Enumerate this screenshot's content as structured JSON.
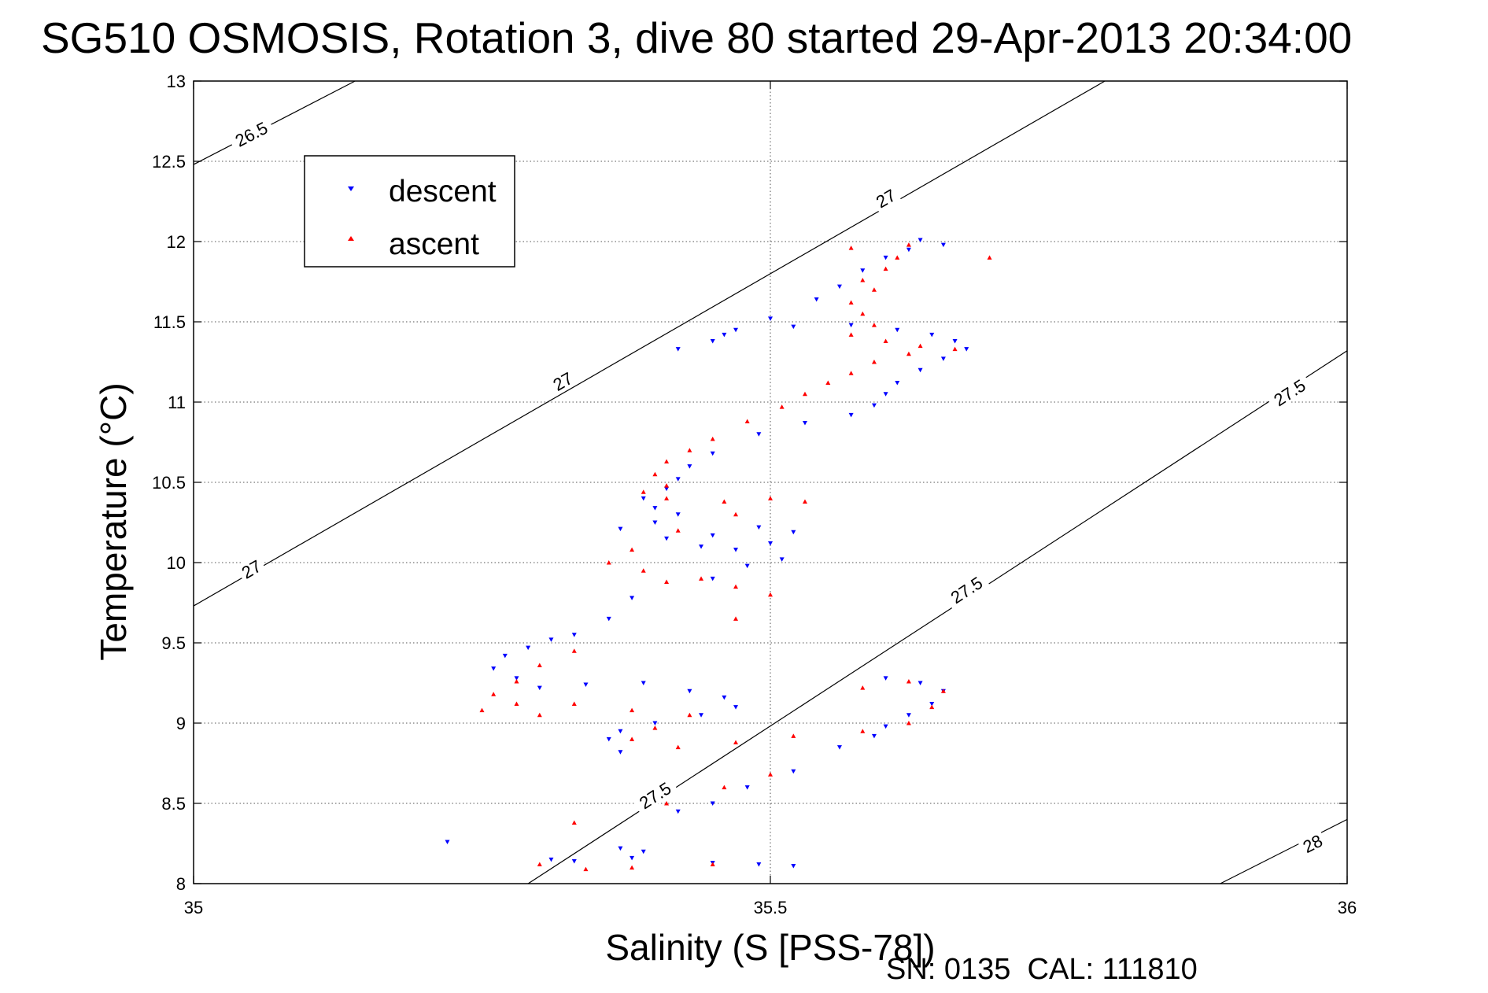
{
  "chart_data": {
    "type": "scatter",
    "title": "SG510 OSMOSIS, Rotation 3, dive 80 started 29-Apr-2013 20:34:00",
    "xlabel": "Salinity (S [PSS-78])",
    "ylabel": "Temperature (°C)",
    "xlim": [
      35,
      36
    ],
    "ylim": [
      8,
      13
    ],
    "xticks": [
      "35",
      "35.5",
      "36"
    ],
    "yticks": [
      "8",
      "8.5",
      "9",
      "9.5",
      "10",
      "10.5",
      "11",
      "11.5",
      "12",
      "12.5",
      "13"
    ],
    "grid": true,
    "legend_position": "top-left",
    "footer": "SN: 0135  CAL: 111810",
    "series": [
      {
        "name": "descent",
        "marker": "triangle-down",
        "color": "#0000ff",
        "points": [
          [
            35.63,
            12.01
          ],
          [
            35.65,
            11.98
          ],
          [
            35.62,
            11.95
          ],
          [
            35.6,
            11.9
          ],
          [
            35.58,
            11.82
          ],
          [
            35.56,
            11.72
          ],
          [
            35.54,
            11.64
          ],
          [
            35.5,
            11.52
          ],
          [
            35.47,
            11.45
          ],
          [
            35.45,
            11.38
          ],
          [
            35.42,
            11.33
          ],
          [
            35.46,
            11.42
          ],
          [
            35.52,
            11.47
          ],
          [
            35.57,
            11.48
          ],
          [
            35.61,
            11.45
          ],
          [
            35.64,
            11.42
          ],
          [
            35.66,
            11.38
          ],
          [
            35.67,
            11.33
          ],
          [
            35.65,
            11.27
          ],
          [
            35.63,
            11.2
          ],
          [
            35.61,
            11.12
          ],
          [
            35.6,
            11.05
          ],
          [
            35.59,
            10.98
          ],
          [
            35.57,
            10.92
          ],
          [
            35.53,
            10.87
          ],
          [
            35.49,
            10.8
          ],
          [
            35.45,
            10.68
          ],
          [
            35.43,
            10.6
          ],
          [
            35.42,
            10.52
          ],
          [
            35.41,
            10.46
          ],
          [
            35.39,
            10.4
          ],
          [
            35.4,
            10.34
          ],
          [
            35.42,
            10.3
          ],
          [
            35.4,
            10.25
          ],
          [
            35.37,
            10.21
          ],
          [
            35.41,
            10.15
          ],
          [
            35.45,
            10.17
          ],
          [
            35.49,
            10.22
          ],
          [
            35.52,
            10.19
          ],
          [
            35.5,
            10.12
          ],
          [
            35.47,
            10.08
          ],
          [
            35.44,
            10.1
          ],
          [
            35.51,
            10.02
          ],
          [
            35.48,
            9.98
          ],
          [
            35.45,
            9.9
          ],
          [
            35.38,
            9.78
          ],
          [
            35.36,
            9.65
          ],
          [
            35.33,
            9.55
          ],
          [
            35.31,
            9.52
          ],
          [
            35.29,
            9.47
          ],
          [
            35.27,
            9.42
          ],
          [
            35.26,
            9.34
          ],
          [
            35.28,
            9.28
          ],
          [
            35.3,
            9.22
          ],
          [
            35.34,
            9.24
          ],
          [
            35.39,
            9.25
          ],
          [
            35.43,
            9.2
          ],
          [
            35.46,
            9.16
          ],
          [
            35.47,
            9.1
          ],
          [
            35.44,
            9.05
          ],
          [
            35.4,
            9.0
          ],
          [
            35.37,
            8.95
          ],
          [
            35.36,
            8.9
          ],
          [
            35.37,
            8.82
          ],
          [
            35.6,
            9.28
          ],
          [
            35.63,
            9.25
          ],
          [
            35.65,
            9.2
          ],
          [
            35.64,
            9.12
          ],
          [
            35.62,
            9.05
          ],
          [
            35.6,
            8.98
          ],
          [
            35.59,
            8.92
          ],
          [
            35.56,
            8.85
          ],
          [
            35.52,
            8.7
          ],
          [
            35.48,
            8.6
          ],
          [
            35.45,
            8.5
          ],
          [
            35.42,
            8.45
          ],
          [
            35.37,
            8.22
          ],
          [
            35.31,
            8.15
          ],
          [
            35.33,
            8.14
          ],
          [
            35.38,
            8.16
          ],
          [
            35.45,
            8.13
          ],
          [
            35.49,
            8.12
          ],
          [
            35.52,
            8.11
          ],
          [
            35.39,
            8.2
          ],
          [
            35.22,
            8.26
          ]
        ]
      },
      {
        "name": "ascent",
        "marker": "triangle-up",
        "color": "#ff0000",
        "points": [
          [
            35.62,
            11.98
          ],
          [
            35.57,
            11.96
          ],
          [
            35.61,
            11.9
          ],
          [
            35.6,
            11.83
          ],
          [
            35.58,
            11.76
          ],
          [
            35.59,
            11.7
          ],
          [
            35.57,
            11.62
          ],
          [
            35.58,
            11.55
          ],
          [
            35.59,
            11.48
          ],
          [
            35.57,
            11.42
          ],
          [
            35.6,
            11.38
          ],
          [
            35.63,
            11.35
          ],
          [
            35.66,
            11.33
          ],
          [
            35.62,
            11.3
          ],
          [
            35.59,
            11.25
          ],
          [
            35.57,
            11.18
          ],
          [
            35.55,
            11.12
          ],
          [
            35.53,
            11.05
          ],
          [
            35.51,
            10.97
          ],
          [
            35.48,
            10.88
          ],
          [
            35.45,
            10.77
          ],
          [
            35.43,
            10.7
          ],
          [
            35.41,
            10.63
          ],
          [
            35.4,
            10.55
          ],
          [
            35.41,
            10.48
          ],
          [
            35.39,
            10.44
          ],
          [
            35.41,
            10.4
          ],
          [
            35.46,
            10.38
          ],
          [
            35.5,
            10.4
          ],
          [
            35.53,
            10.38
          ],
          [
            35.47,
            10.3
          ],
          [
            35.42,
            10.2
          ],
          [
            35.38,
            10.08
          ],
          [
            35.36,
            10.0
          ],
          [
            35.39,
            9.95
          ],
          [
            35.44,
            9.9
          ],
          [
            35.5,
            9.8
          ],
          [
            35.47,
            9.85
          ],
          [
            35.41,
            9.88
          ],
          [
            35.33,
            9.45
          ],
          [
            35.3,
            9.36
          ],
          [
            35.28,
            9.26
          ],
          [
            35.26,
            9.18
          ],
          [
            35.28,
            9.12
          ],
          [
            35.25,
            9.08
          ],
          [
            35.3,
            9.05
          ],
          [
            35.33,
            9.12
          ],
          [
            35.38,
            9.08
          ],
          [
            35.43,
            9.05
          ],
          [
            35.4,
            8.97
          ],
          [
            35.38,
            8.9
          ],
          [
            35.42,
            8.85
          ],
          [
            35.47,
            8.88
          ],
          [
            35.52,
            8.92
          ],
          [
            35.58,
            8.95
          ],
          [
            35.62,
            9.0
          ],
          [
            35.64,
            9.1
          ],
          [
            35.65,
            9.2
          ],
          [
            35.62,
            9.26
          ],
          [
            35.58,
            9.22
          ],
          [
            35.5,
            8.68
          ],
          [
            35.46,
            8.6
          ],
          [
            35.41,
            8.5
          ],
          [
            35.33,
            8.38
          ],
          [
            35.3,
            8.12
          ],
          [
            35.34,
            8.09
          ],
          [
            35.38,
            8.1
          ],
          [
            35.45,
            8.12
          ],
          [
            35.69,
            11.9
          ],
          [
            35.47,
            9.65
          ]
        ]
      }
    ],
    "density_contours": [
      {
        "label": "26.5",
        "from": [
          35.0,
          12.48
        ],
        "to": [
          35.14,
          13.0
        ],
        "label_at": [
          35.05,
          12.67
        ]
      },
      {
        "label": "27",
        "from": [
          35.0,
          9.73
        ],
        "to": [
          35.79,
          13.0
        ],
        "label_at": [
          35.05,
          9.96
        ]
      },
      {
        "label": "27",
        "from": [
          35.0,
          9.73
        ],
        "to": [
          35.79,
          13.0
        ],
        "label_at": [
          35.32,
          11.13
        ]
      },
      {
        "label": "27",
        "from": [
          35.0,
          9.73
        ],
        "to": [
          35.79,
          13.0
        ],
        "label_at": [
          35.6,
          12.27
        ]
      },
      {
        "label": "27.5",
        "from": [
          35.29,
          8.0
        ],
        "to": [
          36.0,
          11.32
        ],
        "label_at": [
          35.4,
          8.55
        ]
      },
      {
        "label": "27.5",
        "from": [
          35.29,
          8.0
        ],
        "to": [
          36.0,
          11.32
        ],
        "label_at": [
          35.67,
          9.83
        ]
      },
      {
        "label": "27.5",
        "from": [
          35.29,
          8.0
        ],
        "to": [
          36.0,
          11.32
        ],
        "label_at": [
          35.95,
          11.06
        ]
      },
      {
        "label": "28",
        "from": [
          35.89,
          8.0
        ],
        "to": [
          36.0,
          8.4
        ],
        "label_at": [
          35.97,
          8.25
        ]
      }
    ]
  }
}
